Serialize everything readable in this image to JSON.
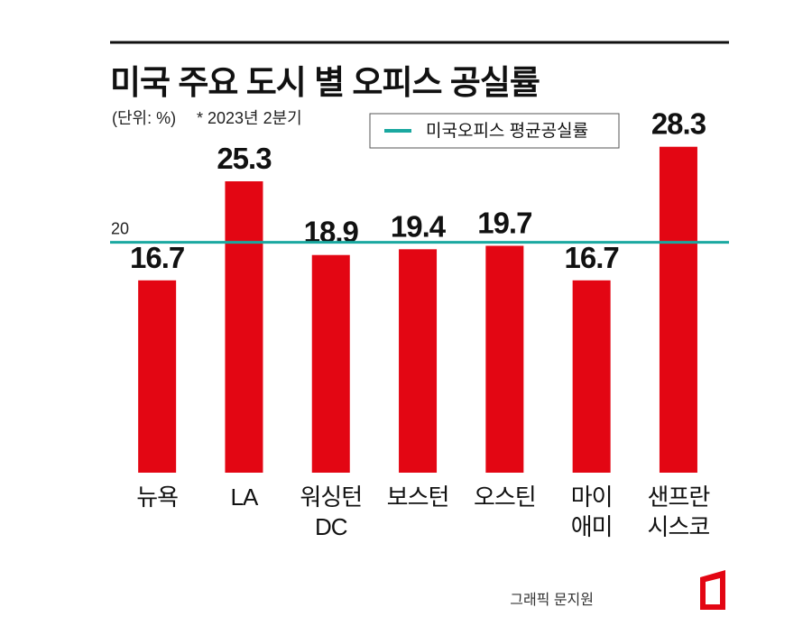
{
  "chart_data": {
    "type": "bar",
    "title": "미국 주요 도시 별 오피스 공실률",
    "unit_note": "(단위: %)",
    "period_note": "* 2023년 2분기",
    "categories": [
      "뉴욕",
      "LA",
      "워싱턴\nDC",
      "보스턴",
      "오스틴",
      "마이\n애미",
      "샌프란\n시스코"
    ],
    "values": [
      16.7,
      25.3,
      18.9,
      19.4,
      19.7,
      16.7,
      28.3
    ],
    "color": "#e30613",
    "ylim": [
      0,
      30
    ],
    "reference_line": {
      "name": "미국오피스 평균공실률",
      "value": 20,
      "color": "#1aa8a0"
    },
    "credit": "그래픽 문지원"
  }
}
